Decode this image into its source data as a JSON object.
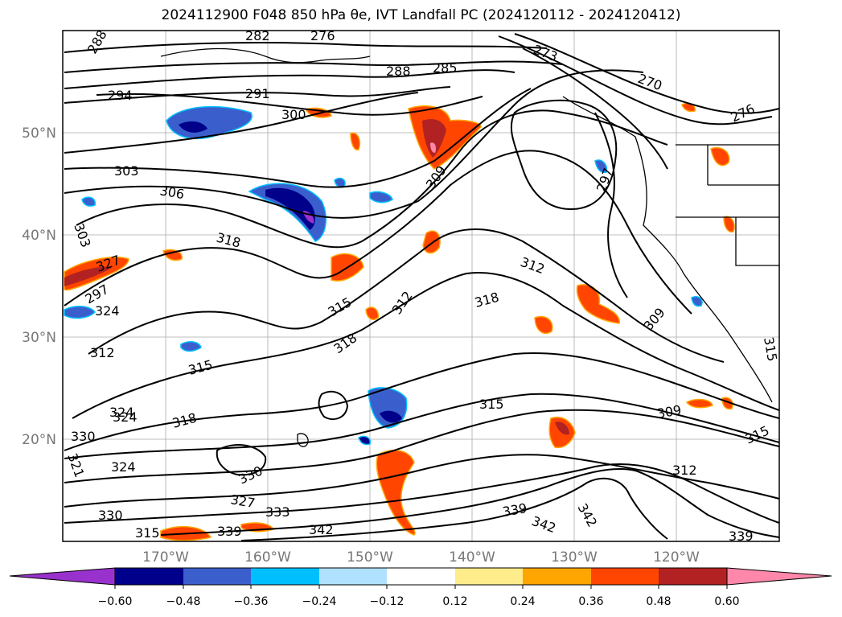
{
  "title": "2024112900 F048 850 hPa θe, IVT Landfall PC (2024120112 - 2024120412)",
  "map": {
    "lat_labels": [
      "50°N",
      "40°N",
      "30°N",
      "20°N"
    ],
    "lon_labels": [
      "170°W",
      "160°W",
      "150°W",
      "140°W",
      "130°W",
      "120°W"
    ],
    "contour_labels": [
      "288",
      "282",
      "276",
      "273",
      "285",
      "288",
      "270",
      "294",
      "291",
      "300",
      "276",
      "303",
      "309",
      "297",
      "306",
      "303",
      "318",
      "312",
      "327",
      "297",
      "324",
      "315",
      "318",
      "312",
      "318",
      "309",
      "312",
      "315",
      "315",
      "324",
      "318",
      "321",
      "315",
      "330",
      "324",
      "330",
      "327",
      "333",
      "330",
      "339",
      "342",
      "339",
      "342",
      "342",
      "312",
      "309",
      "315",
      "339",
      "315",
      "324"
    ]
  },
  "colors": {
    "neg_060": "#9932cc",
    "neg_048": "#00008b",
    "neg_036": "#3a5fcd",
    "neg_024": "#00bfff",
    "neg_012": "#b0e2ff",
    "neutral": "#ffffff",
    "pos_012": "#ffec8b",
    "pos_024": "#ffa500",
    "pos_036": "#ff4500",
    "pos_048": "#b22222",
    "pos_060": "#ff88aa"
  },
  "colorbar": {
    "ticks": [
      "−0.60",
      "−0.48",
      "−0.36",
      "−0.24",
      "−0.12",
      "0.12",
      "0.24",
      "0.36",
      "0.48",
      "0.60"
    ]
  }
}
